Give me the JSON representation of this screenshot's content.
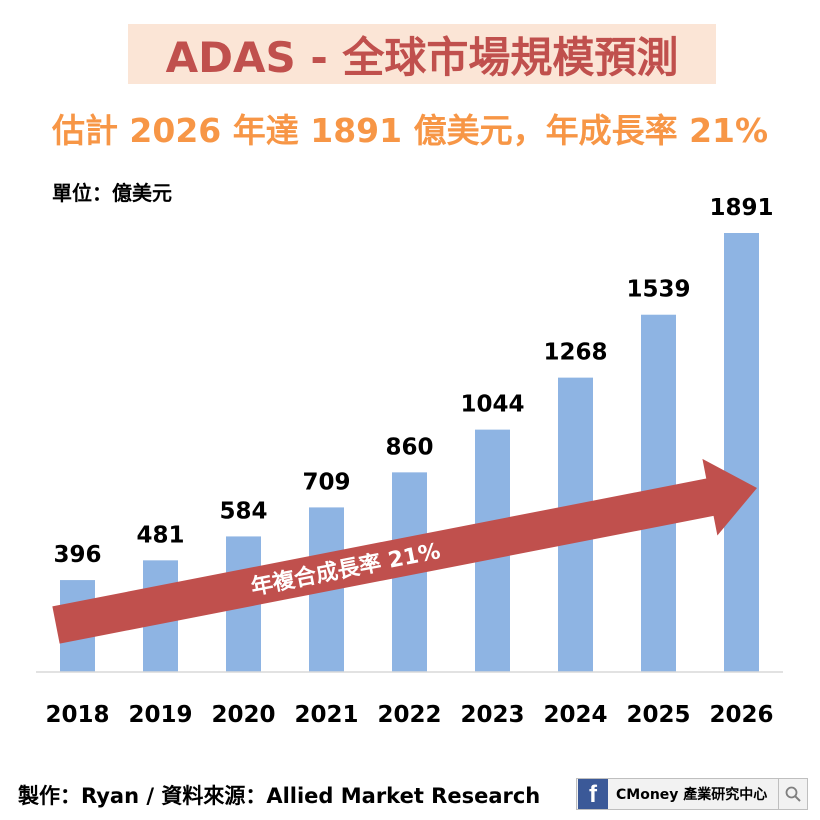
{
  "title": "ADAS - 全球市場規模預測",
  "subtitle": "估計 2026 年達 1891 億美元，年成長率 21%",
  "unit_label": "單位：億美元",
  "footer": "製作：Ryan / 資料來源：Allied Market Research",
  "brand": {
    "icon": "facebook-icon",
    "text": "CMoney 產業研究中心",
    "search_icon": "search-icon",
    "color": "#3b5998"
  },
  "chart_data": {
    "type": "bar",
    "categories": [
      "2018",
      "2019",
      "2020",
      "2021",
      "2022",
      "2023",
      "2024",
      "2025",
      "2026"
    ],
    "values": [
      396,
      481,
      584,
      709,
      860,
      1044,
      1268,
      1539,
      1891
    ],
    "ylim": [
      0,
      1891
    ],
    "bar_color": "#8eb4e3",
    "annotation": {
      "text": "年複合成長率 21%",
      "arrow_color": "#c0504d"
    }
  }
}
